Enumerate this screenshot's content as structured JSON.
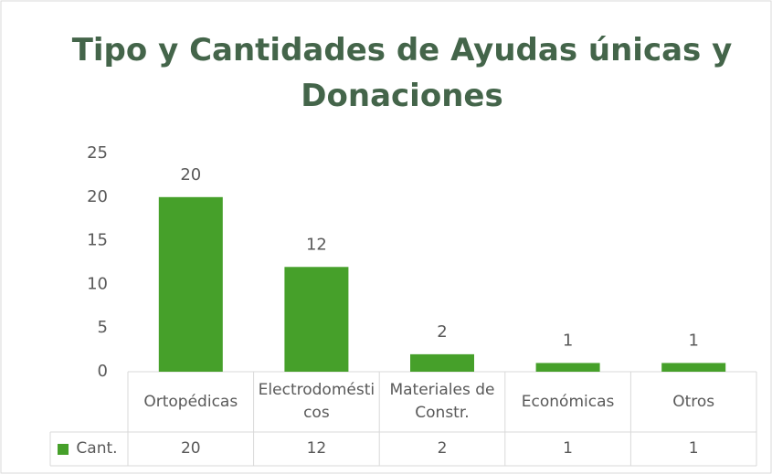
{
  "chart_data": {
    "type": "bar",
    "title": "Tipo y Cantidades de Ayudas únicas y Donaciones",
    "categories": [
      "Ortopédicas",
      "Electrodomésticos",
      "Materiales de Constr.",
      "Económicas",
      "Otros"
    ],
    "series": [
      {
        "name": "Cant.",
        "color": "#46a02a",
        "values": [
          20,
          12,
          2,
          1,
          1
        ]
      }
    ],
    "ylim": [
      0,
      25
    ],
    "yticks": [
      0,
      5,
      10,
      15,
      20,
      25
    ],
    "grid": false,
    "data_table": true
  }
}
